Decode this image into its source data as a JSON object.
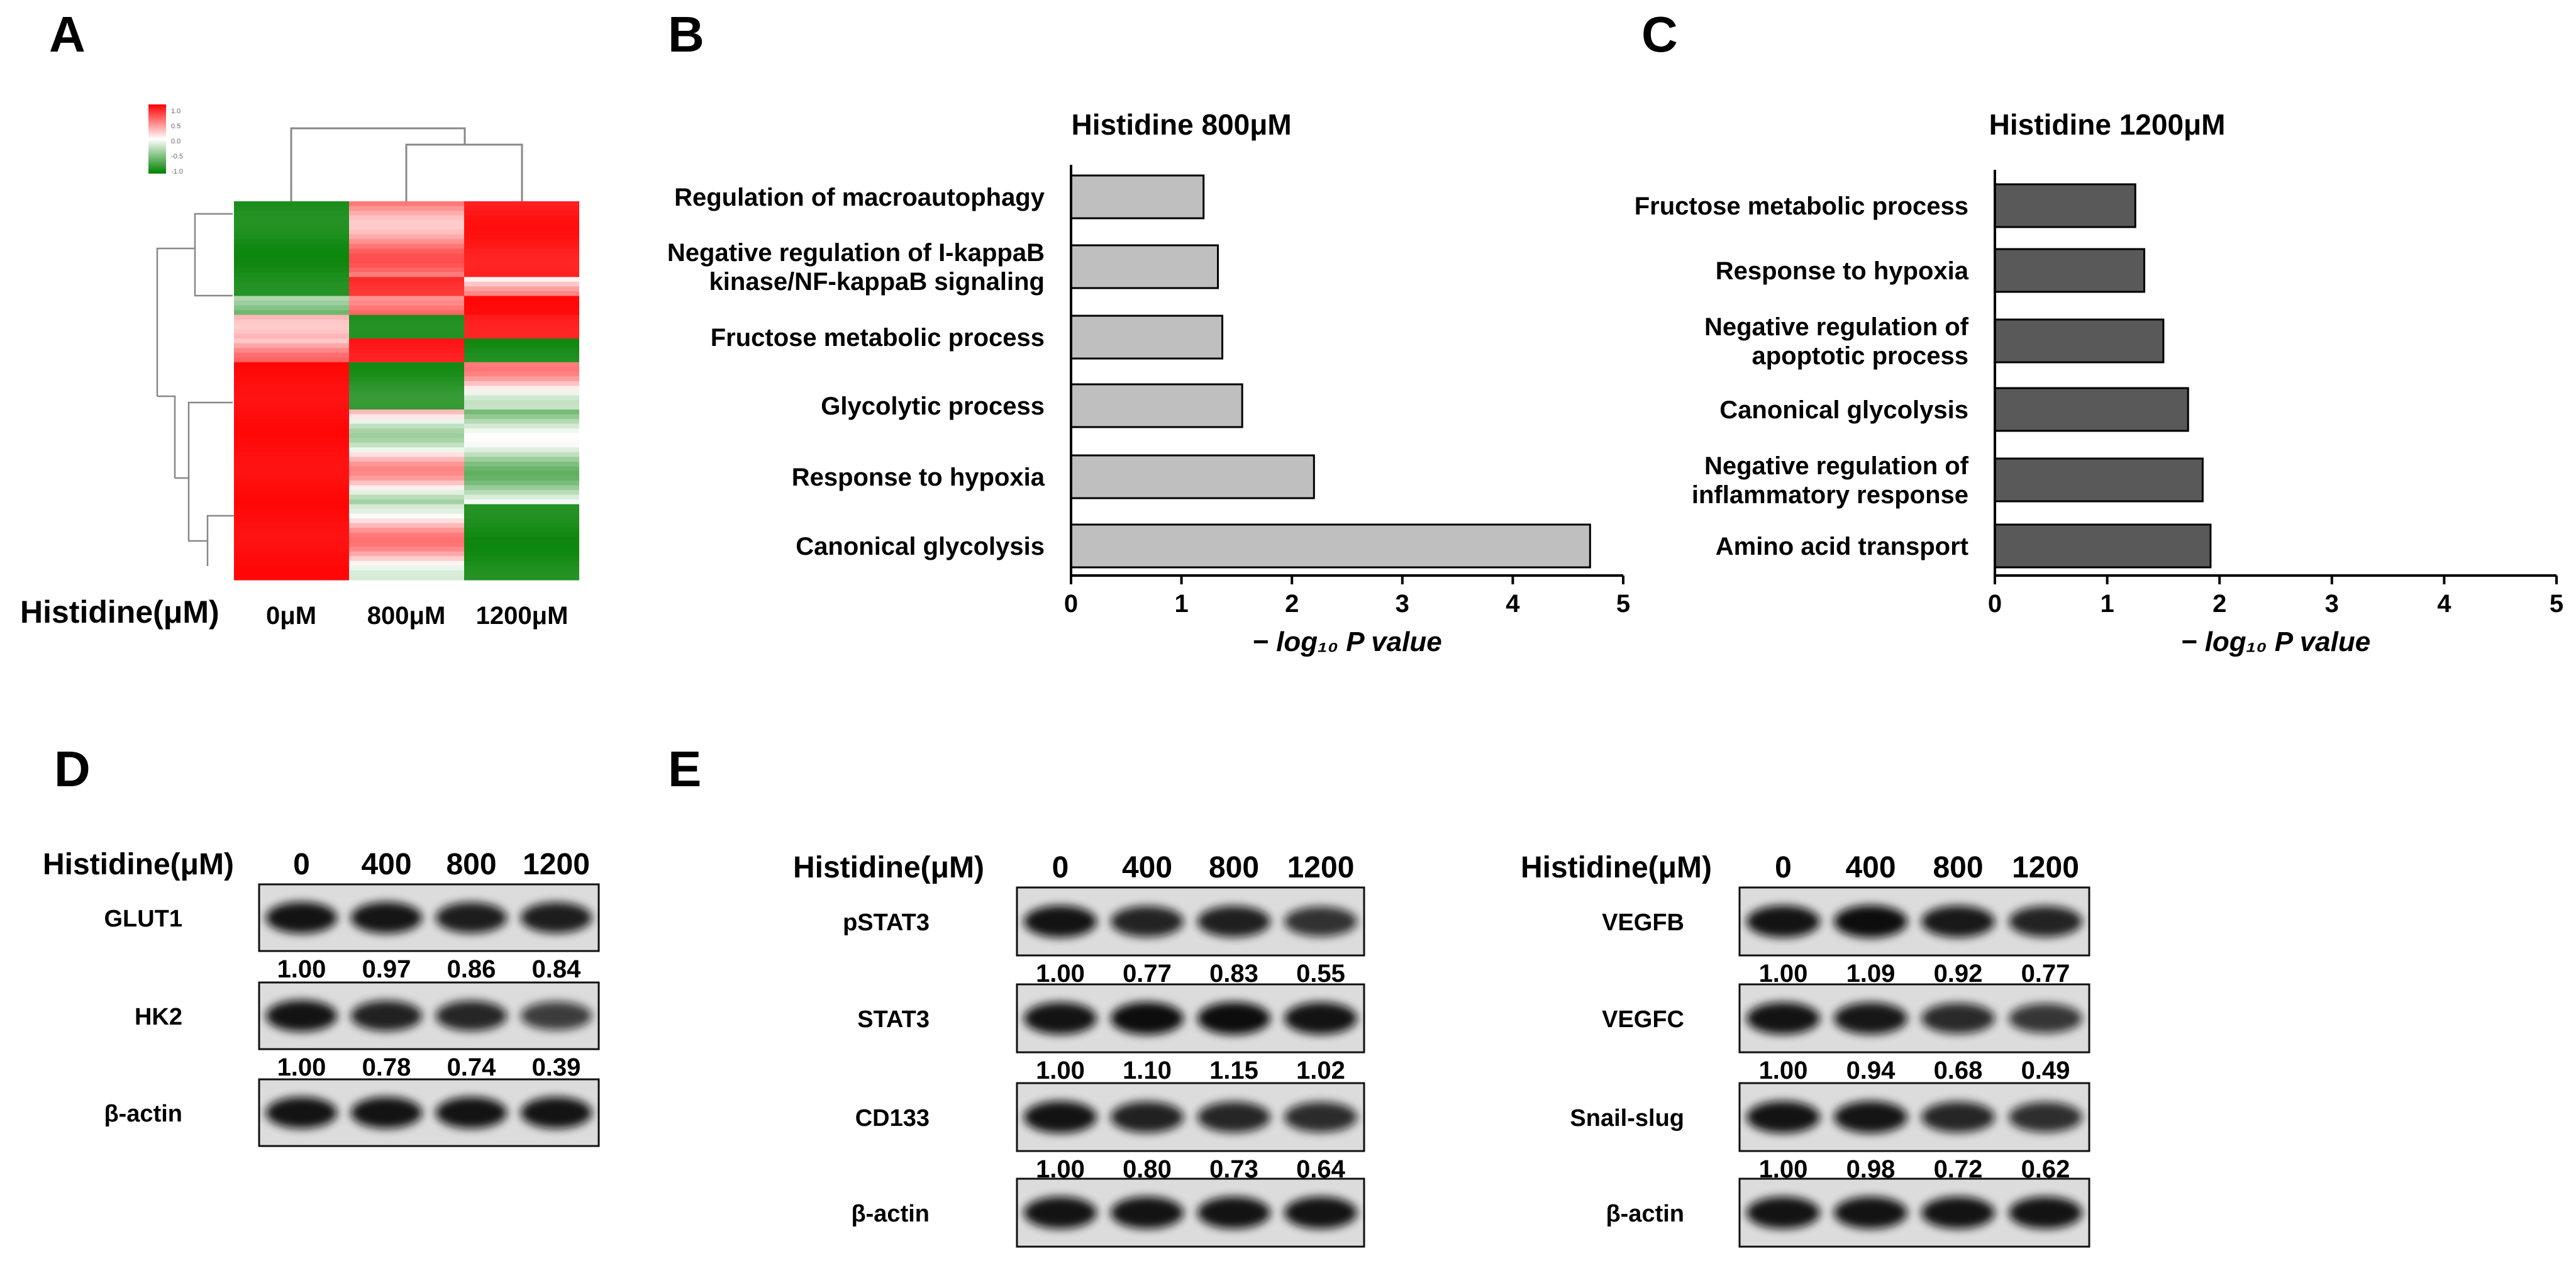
{
  "panels": {
    "A": {
      "letter": "A",
      "colorbar_ticks": [
        "1.0",
        "0.5",
        "0.0",
        "-0.5",
        "-1.0"
      ],
      "row_label": "Histidine(μM)",
      "columns": [
        "0μM",
        "800μM",
        "1200μM"
      ],
      "heatmap_colors": {
        "high": "#ff0000",
        "mid": "#ffffff",
        "low": "#008000"
      }
    },
    "B": {
      "letter": "B",
      "chart_data": {
        "type": "bar",
        "orientation": "horizontal",
        "title": "Histidine 800μM",
        "xlabel": "− log₁₀ P value",
        "xlim": [
          0,
          5
        ],
        "xticks": [
          "0",
          "1",
          "2",
          "3",
          "4",
          "5"
        ],
        "categories": [
          "Regulation of macroautophagy",
          "Negative regulation of I-kappaB kinase/NF-kappaB signaling",
          "Fructose metabolic process",
          "Glycolytic process",
          "Response to hypoxia",
          "Canonical glycolysis"
        ],
        "category_lines": [
          [
            "Regulation of macroautophagy"
          ],
          [
            "Negative regulation of I-kappaB",
            "kinase/NF-kappaB signaling"
          ],
          [
            "Fructose metabolic process"
          ],
          [
            "Glycolytic process"
          ],
          [
            "Response to hypoxia"
          ],
          [
            "Canonical glycolysis"
          ]
        ],
        "values": [
          1.2,
          1.33,
          1.37,
          1.55,
          2.2,
          4.7
        ],
        "bar_color": "#bfbfbf"
      }
    },
    "C": {
      "letter": "C",
      "chart_data": {
        "type": "bar",
        "orientation": "horizontal",
        "title": "Histidine 1200μM",
        "xlabel": "− log₁₀ P value",
        "xlim": [
          0,
          5
        ],
        "xticks": [
          "0",
          "1",
          "2",
          "3",
          "4",
          "5"
        ],
        "categories": [
          "Fructose metabolic process",
          "Response to hypoxia",
          "Negative regulation of apoptotic process",
          "Canonical glycolysis",
          "Negative regulation of inflammatory response",
          "Amino acid transport"
        ],
        "category_lines": [
          [
            "Fructose metabolic process"
          ],
          [
            "Response to hypoxia"
          ],
          [
            "Negative regulation of",
            "apoptotic process"
          ],
          [
            "Canonical glycolysis"
          ],
          [
            "Negative regulation of",
            "inflammatory response"
          ],
          [
            "Amino acid transport"
          ]
        ],
        "values": [
          1.25,
          1.33,
          1.5,
          1.72,
          1.85,
          1.92
        ],
        "bar_color": "#595959"
      }
    },
    "D": {
      "letter": "D",
      "header": "Histidine(μM)",
      "doses": [
        "0",
        "400",
        "800",
        "1200"
      ],
      "blots": [
        {
          "name": "GLUT1",
          "values": [
            "1.00",
            "0.97",
            "0.86",
            "0.84"
          ]
        },
        {
          "name": "HK2",
          "values": [
            "1.00",
            "0.78",
            "0.74",
            "0.39"
          ]
        },
        {
          "name": "β-actin",
          "values": []
        }
      ]
    },
    "E1": {
      "letter": "E",
      "header": "Histidine(μM)",
      "doses": [
        "0",
        "400",
        "800",
        "1200"
      ],
      "blots": [
        {
          "name": "pSTAT3",
          "values": [
            "1.00",
            "0.77",
            "0.83",
            "0.55"
          ]
        },
        {
          "name": "STAT3",
          "values": [
            "1.00",
            "1.10",
            "1.15",
            "1.02"
          ]
        },
        {
          "name": "CD133",
          "values": [
            "1.00",
            "0.80",
            "0.73",
            "0.64"
          ]
        },
        {
          "name": "β-actin",
          "values": []
        }
      ]
    },
    "E2": {
      "header": "Histidine(μM)",
      "doses": [
        "0",
        "400",
        "800",
        "1200"
      ],
      "blots": [
        {
          "name": "VEGFB",
          "values": [
            "1.00",
            "1.09",
            "0.92",
            "0.77"
          ]
        },
        {
          "name": "VEGFC",
          "values": [
            "1.00",
            "0.94",
            "0.68",
            "0.49"
          ]
        },
        {
          "name": "Snail-slug",
          "values": [
            "1.00",
            "0.98",
            "0.72",
            "0.62"
          ]
        },
        {
          "name": "β-actin",
          "values": []
        }
      ]
    }
  }
}
